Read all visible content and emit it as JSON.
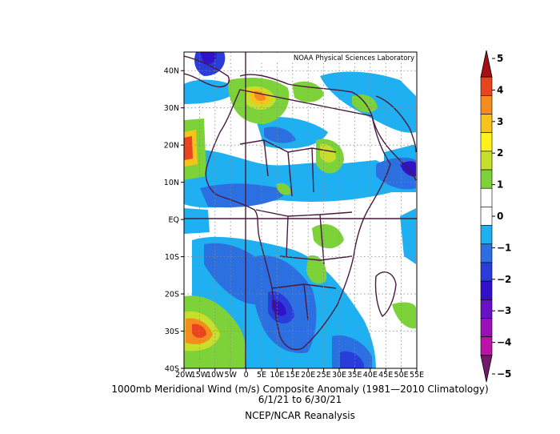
{
  "map": {
    "credit": "NOAA Physical Sciences Laboratory",
    "lat_labels": [
      "40N",
      "30N",
      "20N",
      "10N",
      "EQ",
      "10S",
      "20S",
      "30S",
      "40S"
    ],
    "lon_labels": [
      "20W",
      "15W",
      "10W",
      "5W",
      "0",
      "5E",
      "10E",
      "15E",
      "20E",
      "25E",
      "30E",
      "35E",
      "40E",
      "45E",
      "50E",
      "55E"
    ],
    "lat_range": [
      -40,
      45
    ],
    "lon_range": [
      -20,
      55
    ],
    "grid": true
  },
  "colorbar": {
    "labels": [
      "5",
      "4",
      "3",
      "2",
      "1",
      "0",
      "−1",
      "−2",
      "−3",
      "−4",
      "−5"
    ],
    "colors": [
      "#a50f15",
      "#e8451e",
      "#f48c1e",
      "#f6c31c",
      "#fff21c",
      "#c6df2a",
      "#7dd23a",
      "#ffffff",
      "#ffffff",
      "#1eb0f0",
      "#2b6fe0",
      "#2a3dd8",
      "#3212c8",
      "#6a10c6",
      "#9a0fb8",
      "#bb13a8",
      "#711b6a"
    ]
  },
  "caption": {
    "line1": "1000mb Meridional Wind (m/s) Composite Anomaly (1981—2010 Climatology)",
    "line2": "6/1/21  to 6/30/21",
    "line3": "NCEP/NCAR Reanalysis"
  }
}
